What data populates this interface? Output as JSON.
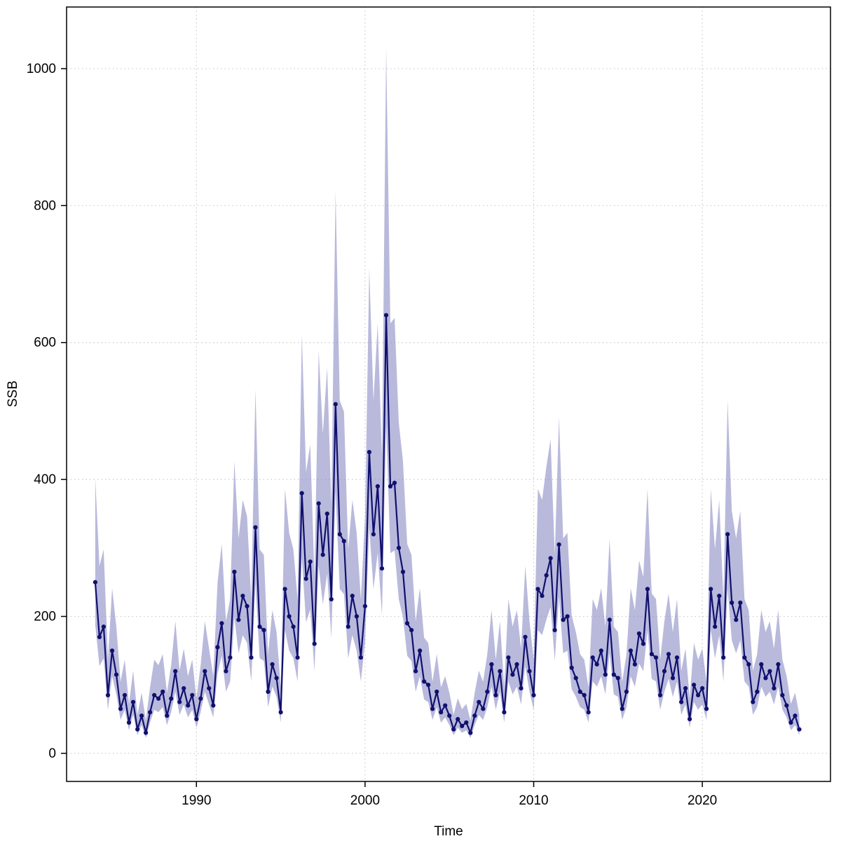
{
  "page": {
    "background": "#ffffff"
  },
  "chart_data": {
    "type": "line",
    "title": "",
    "xlabel": "Time",
    "ylabel": "SSB",
    "legend_position": "none",
    "grid": "dotted",
    "x_ticks": [
      1990,
      2000,
      2010,
      2020
    ],
    "y_ticks": [
      0,
      200,
      400,
      600,
      800,
      1000
    ],
    "xlim": [
      1982.3,
      2027.6
    ],
    "ylim": [
      -41,
      1090
    ],
    "colors": {
      "line": "#10106e",
      "point": "#10106e",
      "band": "#8080c0",
      "band_opacity": "0.55",
      "grid": "#c9c9c9",
      "box": "#000000"
    },
    "series": [
      {
        "name": "SSB",
        "x_start": 1984.0,
        "x_step": 0.25,
        "values": [
          250,
          170,
          185,
          85,
          150,
          115,
          65,
          85,
          45,
          75,
          35,
          55,
          30,
          60,
          85,
          80,
          90,
          55,
          80,
          120,
          75,
          95,
          70,
          85,
          50,
          80,
          120,
          95,
          70,
          155,
          190,
          120,
          140,
          265,
          195,
          230,
          215,
          140,
          330,
          185,
          180,
          90,
          130,
          110,
          60,
          240,
          200,
          185,
          140,
          380,
          255,
          280,
          160,
          365,
          290,
          350,
          225,
          510,
          320,
          310,
          185,
          230,
          200,
          140,
          215,
          440,
          320,
          390,
          270,
          640,
          390,
          395,
          300,
          265,
          190,
          180,
          120,
          150,
          105,
          100,
          65,
          90,
          60,
          70,
          55,
          35,
          50,
          40,
          45,
          30,
          55,
          75,
          65,
          90,
          130,
          85,
          120,
          60,
          140,
          115,
          130,
          95,
          170,
          120,
          85,
          240,
          230,
          260,
          285,
          180,
          305,
          195,
          200,
          125,
          110,
          90,
          85,
          60,
          140,
          130,
          150,
          115,
          195,
          115,
          110,
          65,
          90,
          150,
          130,
          175,
          160,
          240,
          145,
          140,
          85,
          120,
          145,
          110,
          140,
          75,
          95,
          50,
          100,
          85,
          95,
          65,
          240,
          185,
          230,
          140,
          320,
          220,
          195,
          220,
          140,
          130,
          75,
          90,
          130,
          110,
          120,
          95,
          130,
          85,
          70,
          45,
          55,
          35
        ]
      }
    ],
    "ci": {
      "lower_factor": 0.75,
      "upper_factor": 1.61
    }
  }
}
